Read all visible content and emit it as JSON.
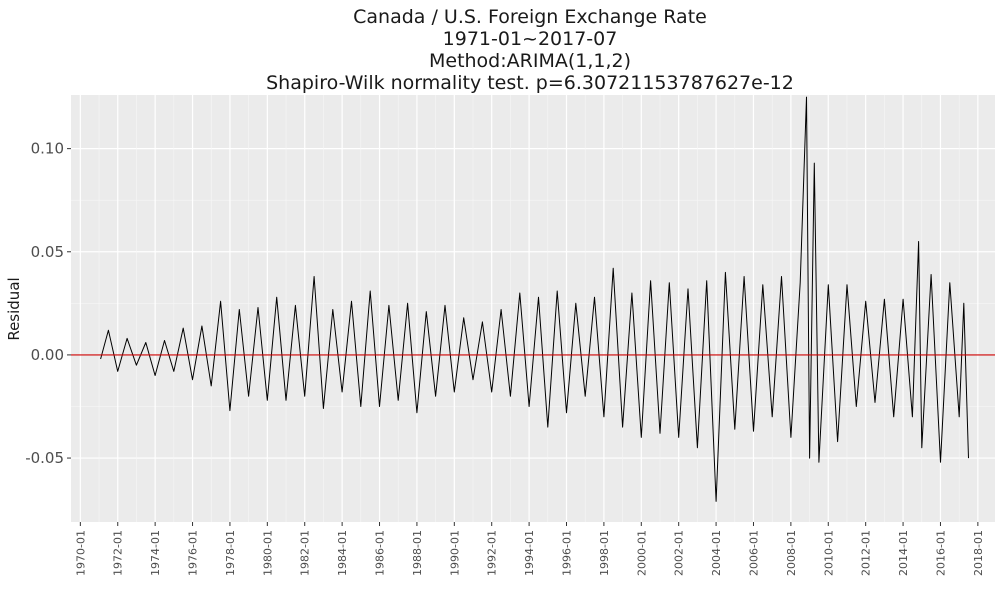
{
  "chart_data": {
    "type": "line",
    "title": [
      "Canada / U.S. Foreign Exchange Rate",
      "1971-01~2017-07",
      "Method:ARIMA(1,1,2)",
      "Shapiro-Wilk normality test. p=6.30721153787627e-12"
    ],
    "xlabel": "",
    "ylabel": "Residual",
    "xlim": [
      "1969-07",
      "2018-12"
    ],
    "ylim": [
      -0.081,
      0.126
    ],
    "yticks": [
      -0.05,
      0.0,
      0.05,
      0.1
    ],
    "ytick_labels": [
      "-0.05",
      "0.00",
      "0.05",
      "0.10"
    ],
    "xticks": [
      "1970-01",
      "1972-01",
      "1974-01",
      "1976-01",
      "1978-01",
      "1980-01",
      "1982-01",
      "1984-01",
      "1986-01",
      "1988-01",
      "1990-01",
      "1992-01",
      "1994-01",
      "1996-01",
      "1998-01",
      "2000-01",
      "2002-01",
      "2004-01",
      "2006-01",
      "2008-01",
      "2010-01",
      "2012-01",
      "2014-01",
      "2016-01",
      "2018-01"
    ],
    "grid": true,
    "background": "#ebebeb",
    "line_color": "#000000",
    "reference_line": {
      "y": 0,
      "color": "#cc0000"
    },
    "series": [
      {
        "x": [
          "1971-02",
          "1971-07",
          "1972-01",
          "1972-07",
          "1973-01",
          "1973-07",
          "1974-01",
          "1974-07",
          "1975-01",
          "1975-07",
          "1976-01",
          "1976-07",
          "1977-01",
          "1977-07",
          "1978-01",
          "1978-07",
          "1979-01",
          "1979-07",
          "1980-01",
          "1980-07",
          "1981-01",
          "1981-07",
          "1982-01",
          "1982-07",
          "1983-01",
          "1983-07",
          "1984-01",
          "1984-07",
          "1985-01",
          "1985-07",
          "1986-01",
          "1986-07",
          "1987-01",
          "1987-07",
          "1988-01",
          "1988-07",
          "1989-01",
          "1989-07",
          "1990-01",
          "1990-07",
          "1991-01",
          "1991-07",
          "1992-01",
          "1992-07",
          "1993-01",
          "1993-07",
          "1994-01",
          "1994-07",
          "1995-01",
          "1995-07",
          "1996-01",
          "1996-07",
          "1997-01",
          "1997-07",
          "1998-01",
          "1998-07",
          "1999-01",
          "1999-07",
          "2000-01",
          "2000-07",
          "2001-01",
          "2001-07",
          "2002-01",
          "2002-07",
          "2003-01",
          "2003-07",
          "2004-01",
          "2004-07",
          "2005-01",
          "2005-07",
          "2006-01",
          "2006-07",
          "2007-01",
          "2007-07",
          "2008-01",
          "2008-07",
          "2008-11",
          "2009-01",
          "2009-04",
          "2009-07",
          "2010-01",
          "2010-07",
          "2011-01",
          "2011-07",
          "2012-01",
          "2012-07",
          "2013-01",
          "2013-07",
          "2014-01",
          "2014-07",
          "2014-11",
          "2015-01",
          "2015-07",
          "2016-01",
          "2016-07",
          "2017-01",
          "2017-04",
          "2017-07"
        ],
        "values": [
          -0.002,
          0.012,
          -0.008,
          0.008,
          -0.005,
          0.006,
          -0.01,
          0.007,
          -0.008,
          0.013,
          -0.012,
          0.014,
          -0.015,
          0.026,
          -0.027,
          0.022,
          -0.02,
          0.023,
          -0.022,
          0.028,
          -0.022,
          0.024,
          -0.02,
          0.038,
          -0.026,
          0.022,
          -0.018,
          0.026,
          -0.025,
          0.031,
          -0.025,
          0.024,
          -0.022,
          0.025,
          -0.028,
          0.021,
          -0.02,
          0.024,
          -0.018,
          0.018,
          -0.012,
          0.016,
          -0.018,
          0.022,
          -0.02,
          0.03,
          -0.025,
          0.028,
          -0.035,
          0.031,
          -0.028,
          0.025,
          -0.02,
          0.028,
          -0.03,
          0.042,
          -0.035,
          0.03,
          -0.04,
          0.036,
          -0.038,
          0.035,
          -0.04,
          0.032,
          -0.045,
          0.036,
          -0.071,
          0.04,
          -0.036,
          0.038,
          -0.037,
          0.034,
          -0.03,
          0.038,
          -0.04,
          0.035,
          0.125,
          -0.05,
          0.093,
          -0.052,
          0.034,
          -0.042,
          0.034,
          -0.025,
          0.026,
          -0.023,
          0.027,
          -0.03,
          0.027,
          -0.03,
          0.055,
          -0.045,
          0.039,
          -0.052,
          0.035,
          -0.03,
          0.025,
          -0.05
        ]
      }
    ]
  }
}
